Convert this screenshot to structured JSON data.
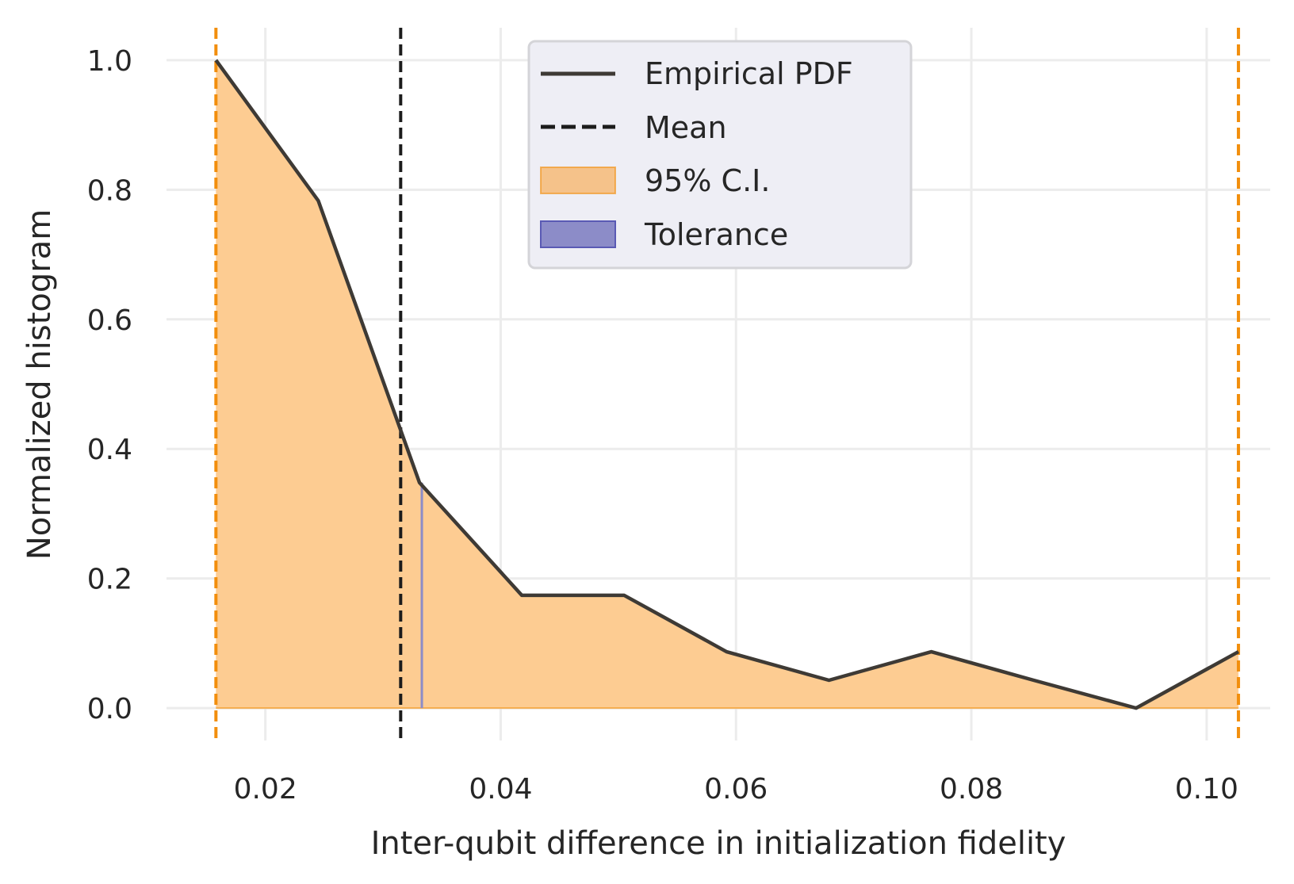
{
  "chart_data": {
    "type": "area",
    "xlabel": "Inter-qubit difference in initialization fidelity",
    "ylabel": "Normalized histogram",
    "xlim": [
      0.0116,
      0.1054
    ],
    "ylim": [
      -0.05,
      1.05
    ],
    "x_ticks": [
      0.02,
      0.04,
      0.06,
      0.08,
      0.1
    ],
    "x_tick_labels": [
      "0.02",
      "0.04",
      "0.06",
      "0.08",
      "0.10"
    ],
    "y_ticks": [
      0.0,
      0.2,
      0.4,
      0.6,
      0.8,
      1.0
    ],
    "y_tick_labels": [
      "0.0",
      "0.2",
      "0.4",
      "0.6",
      "0.8",
      "1.0"
    ],
    "grid": true,
    "legend_position": "upper-center",
    "series": [
      {
        "name": "Empirical PDF",
        "x": [
          0.0158,
          0.0245,
          0.0331,
          0.0418,
          0.0505,
          0.0592,
          0.0679,
          0.0766,
          0.0853,
          0.094,
          0.1027
        ],
        "values": [
          1.0,
          0.783,
          0.348,
          0.174,
          0.174,
          0.087,
          0.043,
          0.087,
          0.043,
          0.0,
          0.087
        ]
      }
    ],
    "mean": 0.0315,
    "ci_95": [
      0.0158,
      0.1027
    ],
    "tolerance": [
      0.0331,
      0.0333
    ],
    "legend": [
      "Empirical PDF",
      "Mean",
      "95% C.I.",
      "Tolerance"
    ],
    "colors": {
      "pdf_line": "#3e3a35",
      "mean_line": "#1c1c1c",
      "ci_fill": "#fdcc92",
      "ci_edge": "#f28e0c",
      "tolerance_fill": "#8c8cc8",
      "tolerance_edge": "#5a5ab4",
      "grid": "#ececec",
      "legend_bg": "#eeeef5",
      "legend_border": "#d4d4d8"
    }
  }
}
